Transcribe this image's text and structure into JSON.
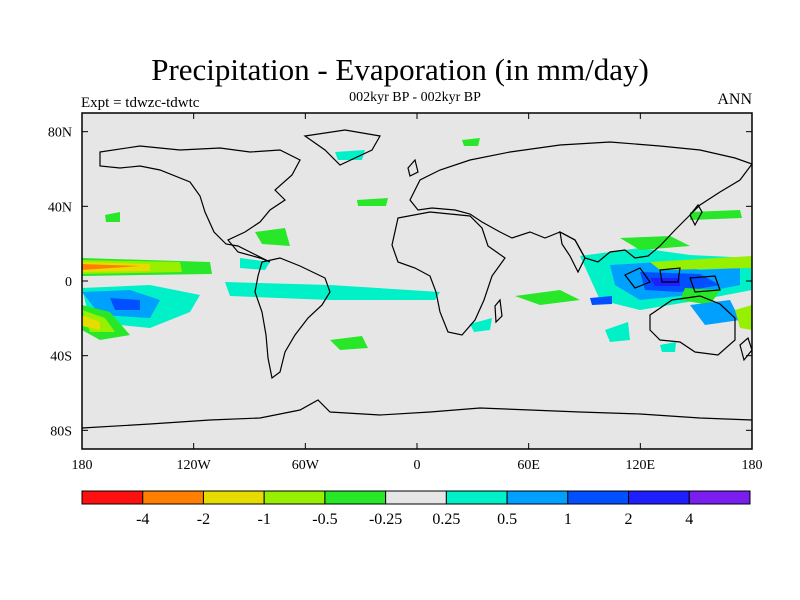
{
  "plot": {
    "title": "Precipitation - Evaporation (in mm/day)",
    "subtitle": "002kyr BP - 002kyr BP",
    "left_string": "Expt = tdwzc-tdwtc",
    "right_string": "ANN"
  },
  "axes": {
    "x_ticks": [
      {
        "lon": -180,
        "label": "180"
      },
      {
        "lon": -120,
        "label": "120W"
      },
      {
        "lon": -60,
        "label": "60W"
      },
      {
        "lon": 0,
        "label": "0"
      },
      {
        "lon": 60,
        "label": "60E"
      },
      {
        "lon": 120,
        "label": "120E"
      },
      {
        "lon": 180,
        "label": "180"
      }
    ],
    "y_ticks": [
      {
        "lat": 80,
        "label": "80N"
      },
      {
        "lat": 40,
        "label": "40N"
      },
      {
        "lat": 0,
        "label": "0"
      },
      {
        "lat": -40,
        "label": "40S"
      },
      {
        "lat": -80,
        "label": "80S"
      }
    ],
    "lon_range": [
      -180,
      180
    ],
    "lat_range": [
      -90,
      90
    ]
  },
  "colorbar": {
    "colors": [
      "#ff1010",
      "#ff7f00",
      "#e6dc00",
      "#96f000",
      "#28e628",
      "#e6e6e6",
      "#00f0c8",
      "#00a0ff",
      "#0050ff",
      "#1e1eff",
      "#7a1ef0"
    ],
    "labels": [
      "-4",
      "-2",
      "-1",
      "-0.5",
      "-0.25",
      "0.25",
      "0.5",
      "1",
      "2",
      "4"
    ]
  },
  "map_colors": {
    "background": "#e6e6e6",
    "coast": "#000000"
  }
}
